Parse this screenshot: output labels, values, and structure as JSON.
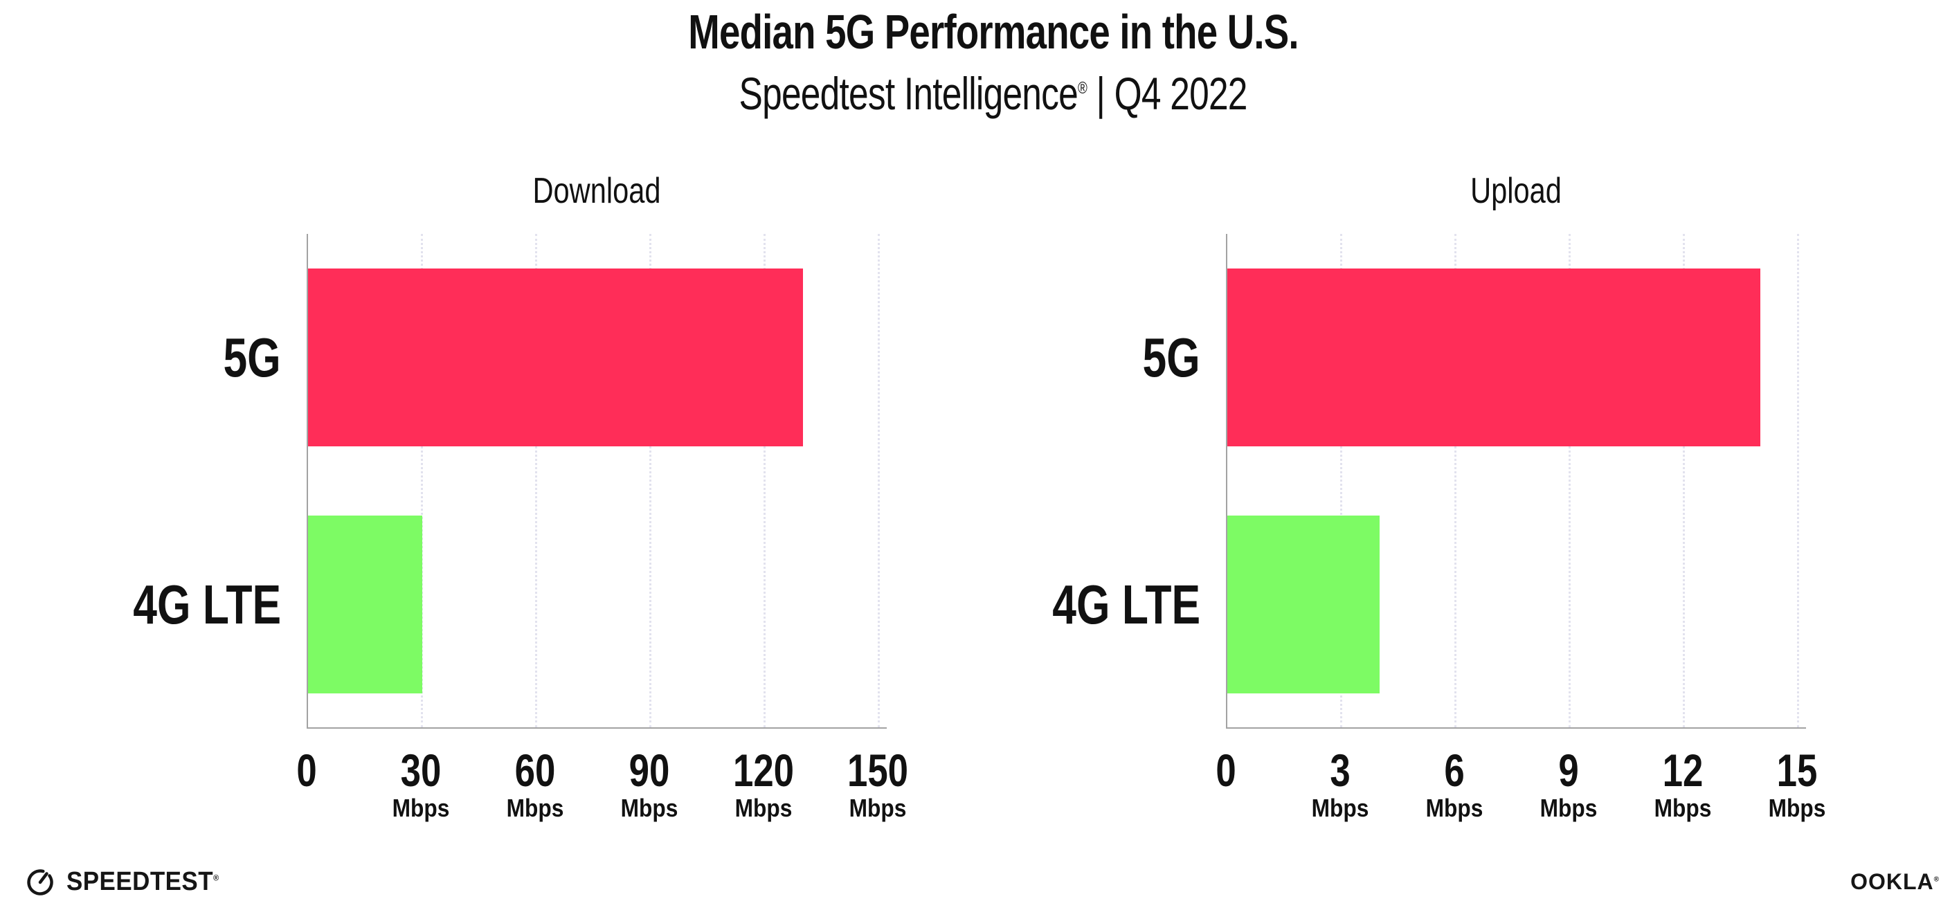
{
  "header": {
    "title": "Median 5G Performance in the U.S.",
    "subtitle": {
      "brand": "Speedtest Intelligence",
      "reg": "®",
      "rest": " | Q4 2022"
    }
  },
  "chart_data": [
    {
      "type": "bar",
      "orientation": "horizontal",
      "title": "Download",
      "categories": [
        "5G",
        "4G LTE"
      ],
      "values": [
        130,
        30
      ],
      "unit": "Mbps",
      "xlim": [
        0,
        150
      ],
      "xticks": [
        0,
        30,
        60,
        90,
        120,
        150
      ],
      "bar_colors": [
        "#FF2D58",
        "#7DFB64"
      ],
      "grid": "dotted-vertical",
      "legend": "none"
    },
    {
      "type": "bar",
      "orientation": "horizontal",
      "title": "Upload",
      "categories": [
        "5G",
        "4G LTE"
      ],
      "values": [
        14,
        4
      ],
      "unit": "Mbps",
      "xlim": [
        0,
        15
      ],
      "xticks": [
        0,
        3,
        6,
        9,
        12,
        15
      ],
      "bar_colors": [
        "#FF2D58",
        "#7DFB64"
      ],
      "grid": "dotted-vertical",
      "legend": "none"
    }
  ],
  "colors": {
    "bar_5g": "#FF2D58",
    "bar_4g_lte": "#7DFB64",
    "gridline": "#E2E2EE",
    "axis": "#A3A3A3",
    "text": "#111111"
  },
  "footer": {
    "speedtest_label": "SPEEDTEST",
    "speedtest_reg": "®",
    "ookla_label": "OOKLA",
    "ookla_reg": "®"
  }
}
